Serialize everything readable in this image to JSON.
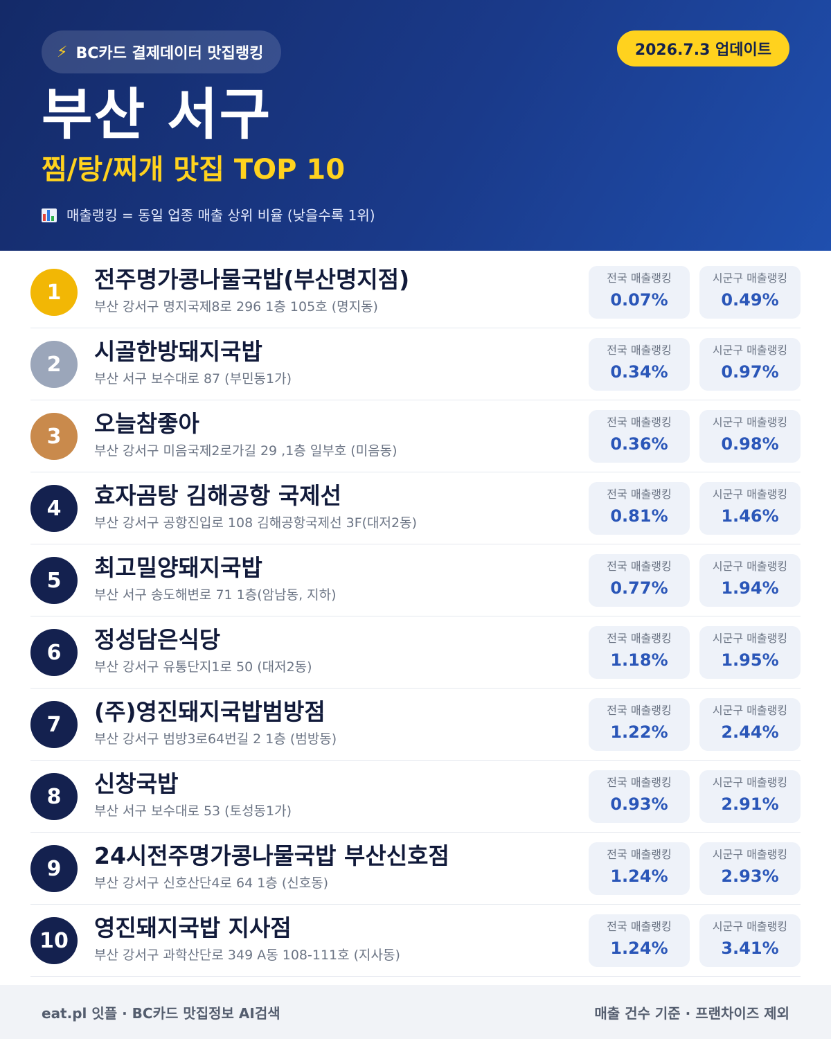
{
  "header": {
    "source_label": "BC카드 결제데이터 맛집랭킹",
    "source_icon": "lightning-icon",
    "update_label": "2026.7.3 업데이트",
    "title": "부산 서구",
    "subtitle": "찜/탕/찌개 맛집 TOP 10",
    "legend_icon": "bar-chart-icon",
    "legend": "매출랭킹 = 동일 업종 매출 상위 비율 (낮을수록 1위)"
  },
  "colors": {
    "gold": "#f2b705",
    "silver": "#9ba6ba",
    "bronze": "#c98a4c",
    "navy": "#14214f",
    "accent_yellow": "#ffd21e",
    "value_blue": "#2a56b8"
  },
  "stat_labels": {
    "national": "전국 매출랭킹",
    "local": "시군구 매출랭킹"
  },
  "rankings": [
    {
      "rank": "1",
      "name": "전주명가콩나물국밥(부산명지점)",
      "address": "부산 강서구 명지국제8로 296 1층 105호 (명지동)",
      "national": "0.07%",
      "local": "0.49%"
    },
    {
      "rank": "2",
      "name": "시골한방돼지국밥",
      "address": "부산 서구 보수대로 87 (부민동1가)",
      "national": "0.34%",
      "local": "0.97%"
    },
    {
      "rank": "3",
      "name": "오늘참좋아",
      "address": "부산 강서구 미음국제2로가길 29 ,1층 일부호 (미음동)",
      "national": "0.36%",
      "local": "0.98%"
    },
    {
      "rank": "4",
      "name": "효자곰탕 김해공항 국제선",
      "address": "부산 강서구 공항진입로 108 김해공항국제선 3F(대저2동)",
      "national": "0.81%",
      "local": "1.46%"
    },
    {
      "rank": "5",
      "name": "최고밀양돼지국밥",
      "address": "부산 서구 송도해변로 71 1층(암남동, 지하)",
      "national": "0.77%",
      "local": "1.94%"
    },
    {
      "rank": "6",
      "name": "정성담은식당",
      "address": "부산 강서구 유통단지1로 50 (대저2동)",
      "national": "1.18%",
      "local": "1.95%"
    },
    {
      "rank": "7",
      "name": "(주)영진돼지국밥범방점",
      "address": "부산 강서구 범방3로64번길 2 1층 (범방동)",
      "national": "1.22%",
      "local": "2.44%"
    },
    {
      "rank": "8",
      "name": "신창국밥",
      "address": "부산 서구 보수대로 53 (토성동1가)",
      "national": "0.93%",
      "local": "2.91%"
    },
    {
      "rank": "9",
      "name": "24시전주명가콩나물국밥 부산신호점",
      "address": "부산 강서구 신호산단4로 64 1층 (신호동)",
      "national": "1.24%",
      "local": "2.93%"
    },
    {
      "rank": "10",
      "name": "영진돼지국밥 지사점",
      "address": "부산 강서구 과학산단로 349 A동 108-111호 (지사동)",
      "national": "1.24%",
      "local": "3.41%"
    }
  ],
  "footer": {
    "left": "eat.pl 잇플 · BC카드 맛집정보 AI검색",
    "right": "매출 건수 기준 · 프랜차이즈 제외"
  }
}
